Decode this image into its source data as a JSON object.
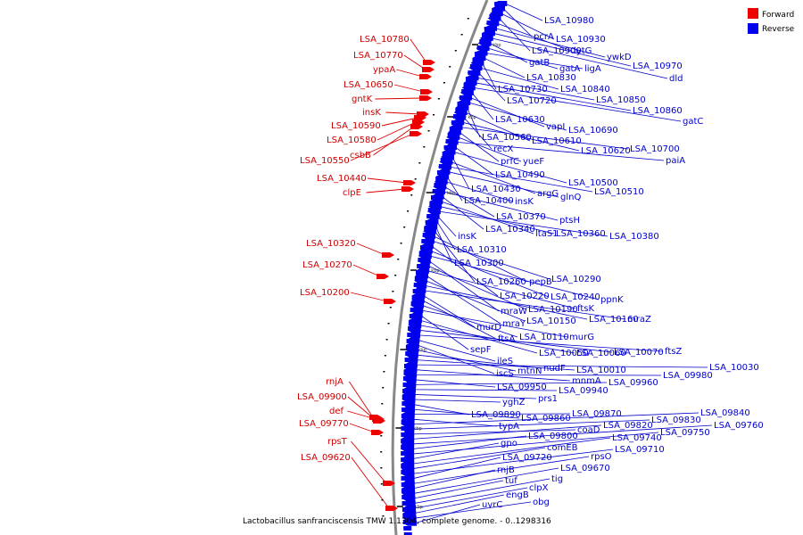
{
  "caption": "Lactobacillus sanfranciscensis TMW 1.1304, complete genome. - 0..1298316",
  "legend": {
    "forward_label": "Forward",
    "reverse_label": "Reverse",
    "forward_color": "#ee0000",
    "reverse_color": "#0000ee"
  },
  "ticks": [
    "1060 kbp",
    "1040 kbp",
    "1020 kbp",
    "1000 kbp",
    "980 kbp",
    "960 kbp",
    "940 kbp"
  ],
  "forward_genes": [
    "LSA_10780",
    "LSA_10770",
    "ypaA",
    "LSA_10650",
    "gntK",
    "insK",
    "LSA_10590",
    "LSA_10580",
    "csbB",
    "LSA_10550",
    "LSA_10440",
    "clpE",
    "LSA_10320",
    "LSA_10270",
    "LSA_10200",
    "rnjA",
    "LSA_09900",
    "def",
    "LSA_09770",
    "rpsT",
    "LSA_09620"
  ],
  "reverse_genes": [
    "LSA_10980",
    "pcrA",
    "LSA_10930",
    "LSA_10900",
    "lytG",
    "ywkD",
    "LSA_10970",
    "dld",
    "gatB",
    "gatA",
    "ligA",
    "LSA_10830",
    "LSA_10730",
    "LSA_10840",
    "LSA_10720",
    "LSA_10850",
    "LSA_10860",
    "gatC",
    "LSA_10630",
    "vapI",
    "LSA_10690",
    "LSA_10560",
    "LSA_10610",
    "recX",
    "LSA_10620",
    "LSA_10700",
    "prfC",
    "yueF",
    "paiA",
    "LSA_10490",
    "LSA_10500",
    "LSA_10430",
    "argG",
    "LSA_10510",
    "glnQ",
    "LSA_10400",
    "insK",
    "LSA_10370",
    "ptsH",
    "LSA_10340",
    "ltaS1",
    "LSA_10360",
    "LSA_10380",
    "insK",
    "LSA_10310",
    "LSA_10300",
    "LSA_10260",
    "pepB",
    "LSA_10290",
    "LSA_10220",
    "LSA_10240",
    "ppnK",
    "mraW",
    "LSA_10190",
    "ftsK",
    "mraY",
    "LSA_10150",
    "LSA_10160",
    "mraZ",
    "murD",
    "ftsA",
    "LSA_10110",
    "murG",
    "sepF",
    "LSA_10050",
    "LSA_10060",
    "LSA_10070",
    "ftsZ",
    "ileS",
    "iscS",
    "mtnN",
    "nudF",
    "LSA_10010",
    "LSA_10030",
    "mnmA",
    "LSA_09980",
    "LSA_09950",
    "LSA_09960",
    "LSA_09940",
    "prs1",
    "yghZ",
    "LSA_09890",
    "LSA_09860",
    "LSA_09870",
    "typA",
    "LSA_09840",
    "LSA_09830",
    "coaD",
    "LSA_09820",
    "LSA_09760",
    "LSA_09800",
    "LSA_09750",
    "gpo",
    "LSA_09740",
    "comEB",
    "LSA_09710",
    "LSA_09720",
    "rpsO",
    "rnjB",
    "LSA_09670",
    "tuf",
    "tig",
    "clpX",
    "engB",
    "obg",
    "uvrC"
  ]
}
